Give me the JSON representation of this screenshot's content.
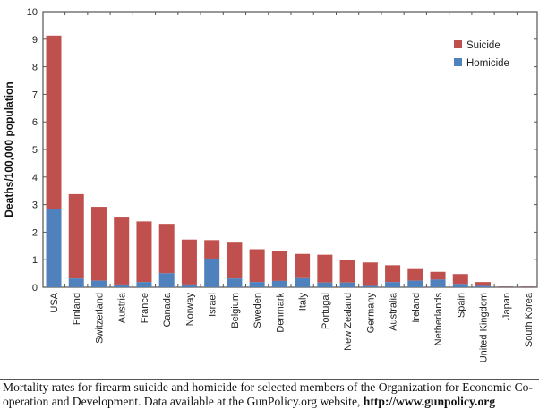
{
  "chart_data": {
    "type": "bar",
    "stacked": true,
    "ylabel": "Deaths/100,000 population",
    "xlabel": "",
    "ylim": [
      0,
      10
    ],
    "yticks": [
      0,
      1,
      2,
      3,
      4,
      5,
      6,
      7,
      8,
      9,
      10
    ],
    "grid": false,
    "legend_position": "top-right",
    "categories": [
      "USA",
      "Finland",
      "Switzerland",
      "Austria",
      "France",
      "Canada",
      "Norway",
      "Israel",
      "Belgium",
      "Sweden",
      "Denmark",
      "Italy",
      "Portugal",
      "New Zealand",
      "Germany",
      "Australia",
      "Ireland",
      "Netherlands",
      "Spain",
      "United Kingdom",
      "Japan",
      "South Korea"
    ],
    "series": [
      {
        "name": "Homicide",
        "color": "#4f81bd",
        "values": [
          2.83,
          0.32,
          0.24,
          0.1,
          0.19,
          0.51,
          0.1,
          1.04,
          0.32,
          0.19,
          0.23,
          0.33,
          0.17,
          0.17,
          0.05,
          0.19,
          0.24,
          0.28,
          0.12,
          0.05,
          0.01,
          0.01
        ]
      },
      {
        "name": "Suicide",
        "color": "#c0504d",
        "values": [
          6.3,
          3.06,
          2.68,
          2.43,
          2.2,
          1.79,
          1.63,
          0.67,
          1.33,
          1.19,
          1.07,
          0.88,
          1.01,
          0.83,
          0.85,
          0.61,
          0.42,
          0.28,
          0.36,
          0.14,
          0.02,
          0.02
        ]
      }
    ],
    "legend": [
      "Suicide",
      "Homicide"
    ]
  },
  "caption": {
    "text": "Mortality rates for firearm suicide and homicide for selected members of the Organization for Economic Co-operation and Development. Data available at the GunPolicy.org website, ",
    "link": "http://www.gunpolicy.org"
  }
}
